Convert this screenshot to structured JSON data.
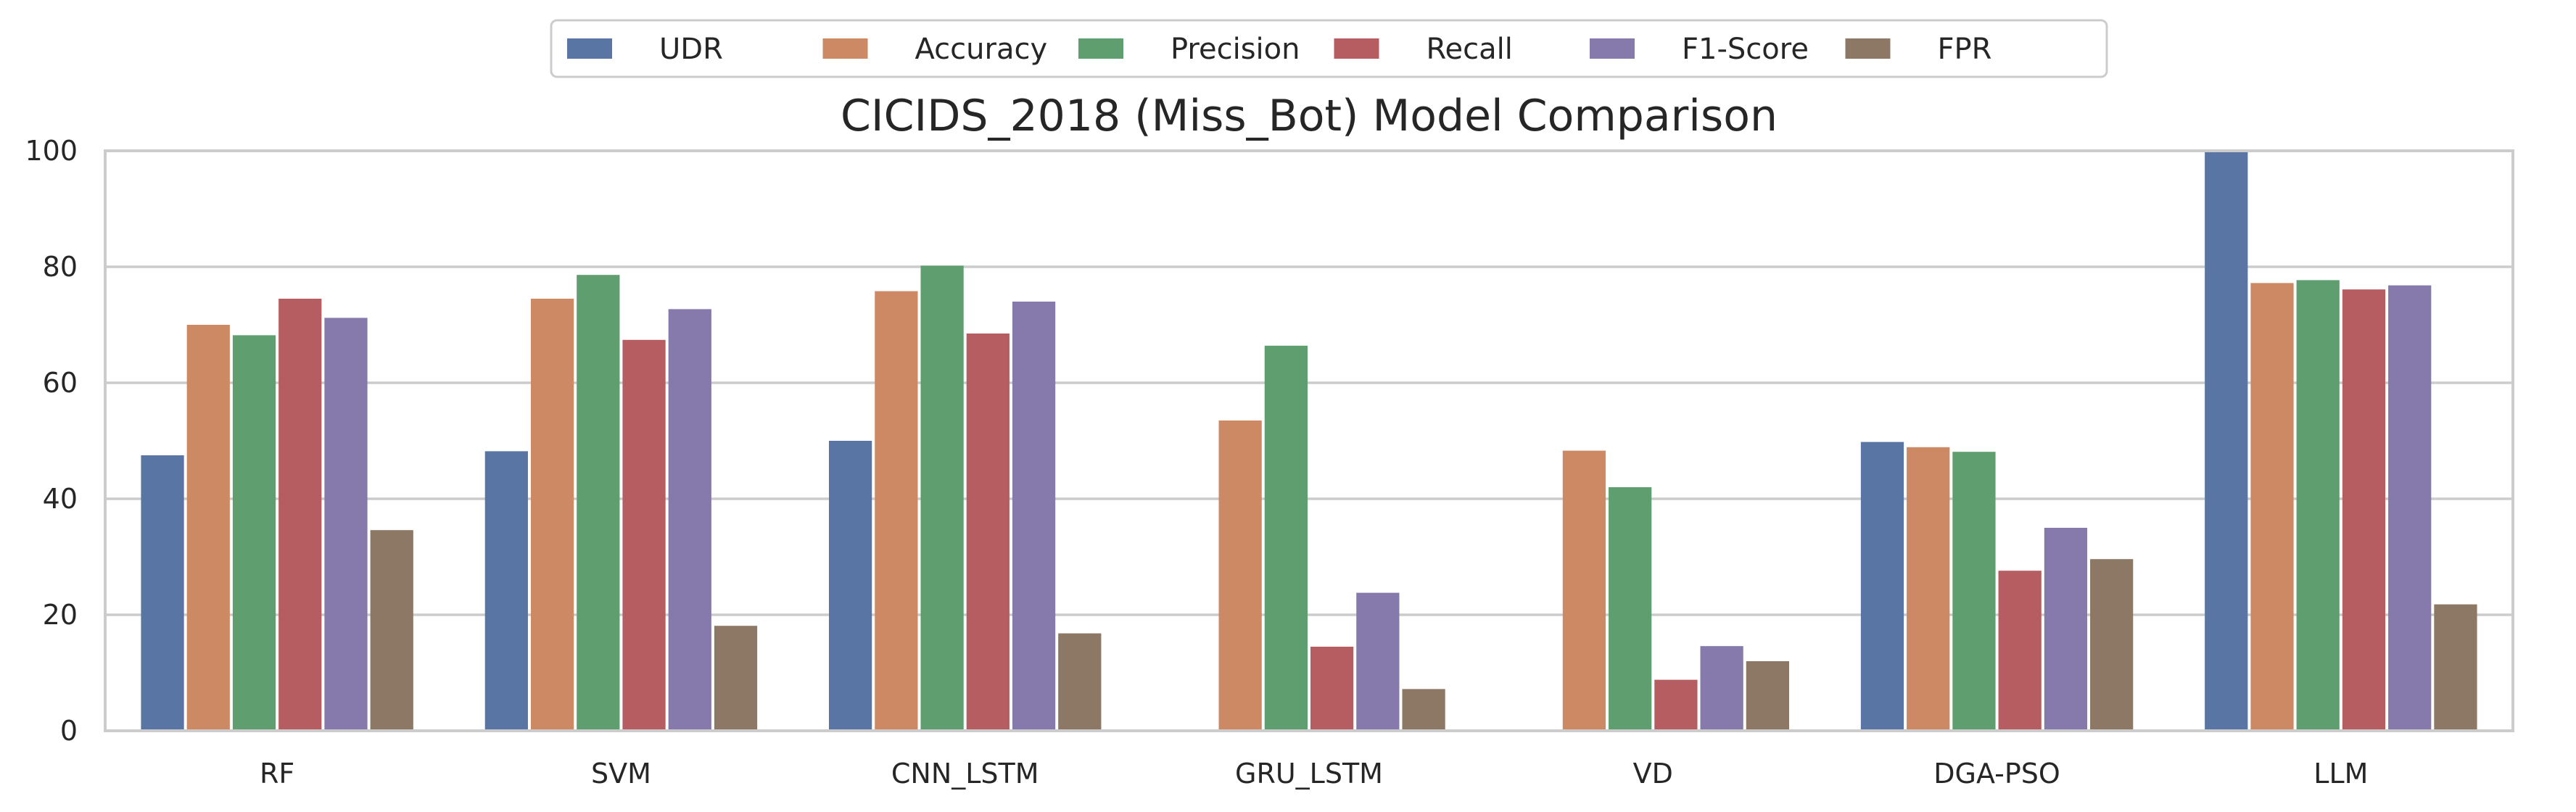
{
  "chart_data": {
    "type": "bar",
    "title": "CICIDS_2018 (Miss_Bot) Model Comparison",
    "xlabel": "",
    "ylabel": "",
    "ylim": [
      0,
      100
    ],
    "yticks": [
      0,
      20,
      40,
      60,
      80,
      100
    ],
    "grid": true,
    "legend_position": "top-center",
    "categories": [
      "RF",
      "SVM",
      "CNN_LSTM",
      "GRU_LSTM",
      "VD",
      "DGA-PSO",
      "LLM"
    ],
    "series": [
      {
        "name": "UDR",
        "color": "#5875a4",
        "values": [
          47.5,
          48.2,
          50.0,
          0,
          0,
          49.8,
          100
        ]
      },
      {
        "name": "Accuracy",
        "color": "#cc8963",
        "values": [
          70.0,
          74.5,
          75.8,
          53.5,
          48.3,
          48.9,
          77.2
        ]
      },
      {
        "name": "Precision",
        "color": "#5f9e6e",
        "values": [
          68.2,
          78.6,
          80.2,
          66.4,
          42.0,
          48.1,
          77.7
        ]
      },
      {
        "name": "Recall",
        "color": "#b55d60",
        "values": [
          74.5,
          67.4,
          68.5,
          14.5,
          8.8,
          27.6,
          76.1
        ]
      },
      {
        "name": "F1-Score",
        "color": "#857aab",
        "values": [
          71.2,
          72.7,
          74.0,
          23.8,
          14.6,
          35.0,
          76.8
        ]
      },
      {
        "name": "FPR",
        "color": "#8d7866",
        "values": [
          34.6,
          18.1,
          16.8,
          7.2,
          12.0,
          29.6,
          21.8
        ]
      }
    ]
  }
}
